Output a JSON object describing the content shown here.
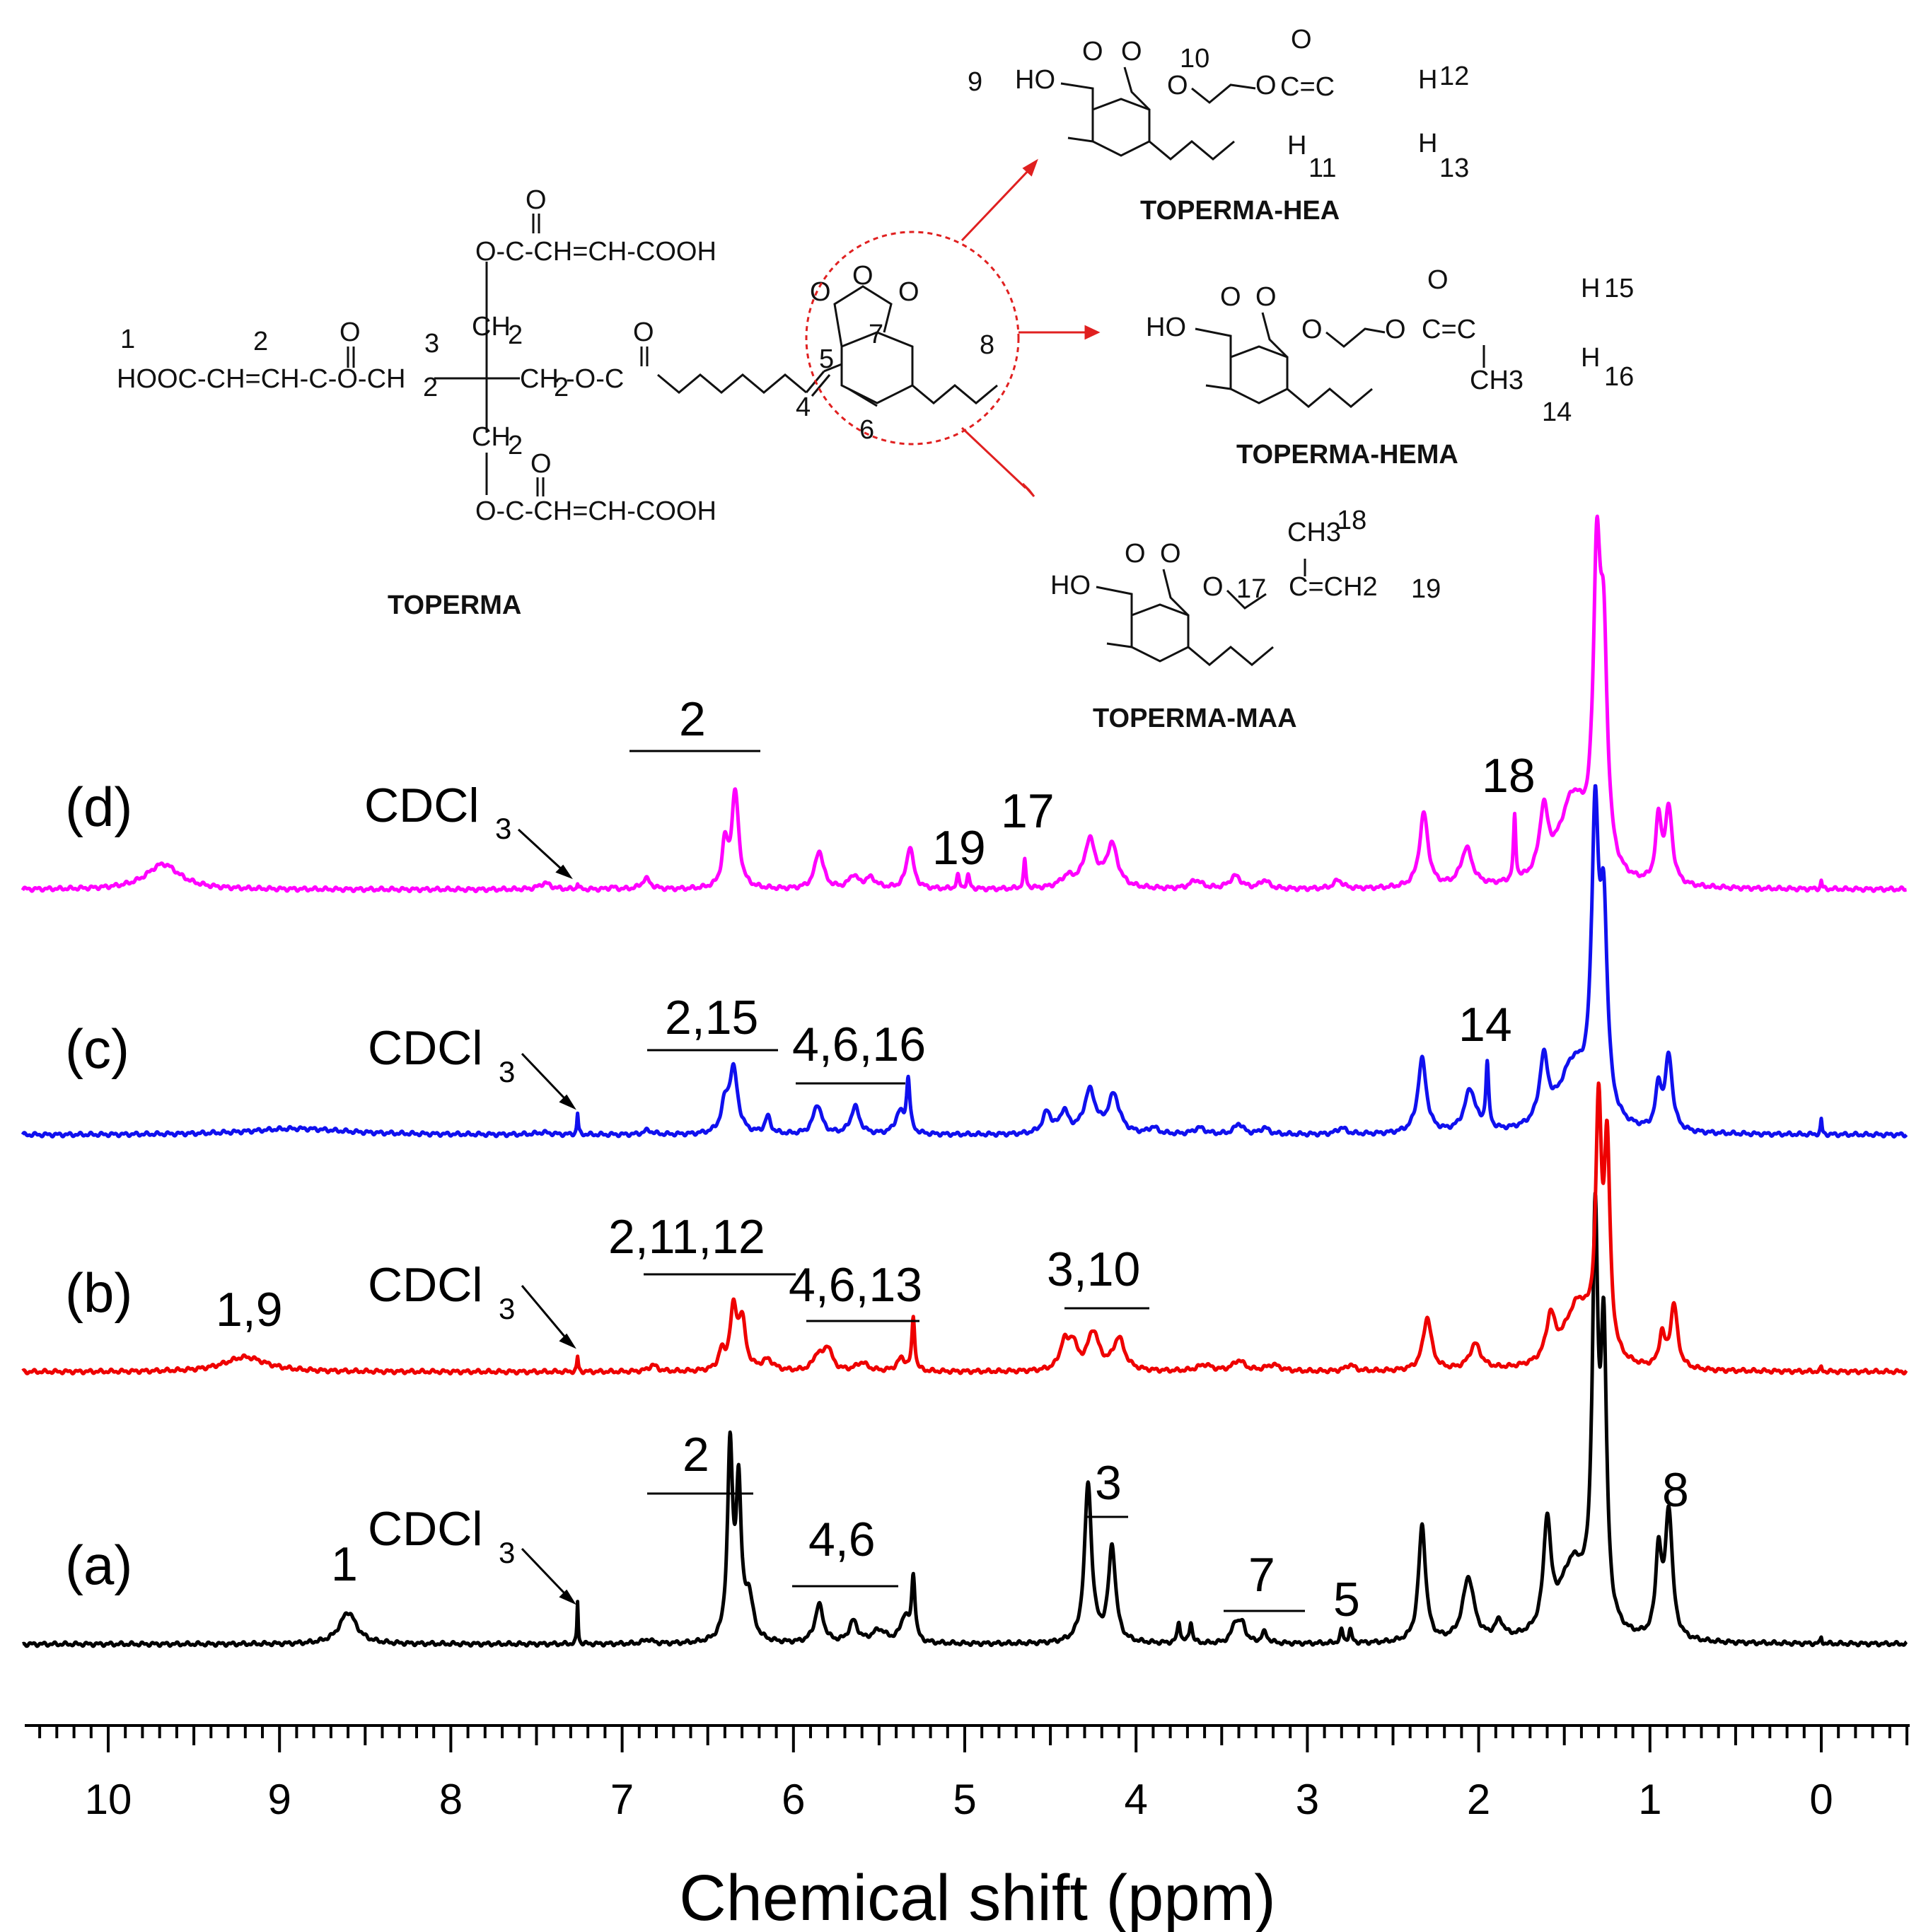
{
  "chart_data": {
    "type": "line",
    "title": "",
    "xlabel": "Chemical shift (ppm)",
    "ylabel": "",
    "xlim": [
      10.5,
      -0.5
    ],
    "xticks": [
      "10",
      "9",
      "8",
      "7",
      "6",
      "5",
      "4",
      "3",
      "2",
      "1",
      "0"
    ],
    "grid": false,
    "series": [
      {
        "name": "(a)",
        "color": "#000000",
        "peaks": [
          [
            8.6,
            0.06,
            0.15
          ],
          [
            7.26,
            0.004,
            0.2
          ],
          [
            6.85,
            0.03,
            0.02
          ],
          [
            6.37,
            0.018,
            0.9
          ],
          [
            6.32,
            0.018,
            0.7
          ],
          [
            6.26,
            0.03,
            0.2
          ],
          [
            5.85,
            0.03,
            0.18
          ],
          [
            5.65,
            0.03,
            0.1
          ],
          [
            5.5,
            0.05,
            0.06
          ],
          [
            5.35,
            0.03,
            0.12
          ],
          [
            5.3,
            0.012,
            0.3
          ],
          [
            4.28,
            0.025,
            0.75
          ],
          [
            4.14,
            0.025,
            0.45
          ],
          [
            3.75,
            0.01,
            0.1
          ],
          [
            3.68,
            0.01,
            0.1
          ],
          [
            3.42,
            0.025,
            0.09
          ],
          [
            3.38,
            0.025,
            0.08
          ],
          [
            3.25,
            0.02,
            0.05
          ],
          [
            2.8,
            0.01,
            0.06
          ],
          [
            2.75,
            0.01,
            0.06
          ],
          [
            2.33,
            0.025,
            0.55
          ],
          [
            2.06,
            0.04,
            0.3
          ],
          [
            1.88,
            0.03,
            0.08
          ],
          [
            1.6,
            0.025,
            0.5
          ],
          [
            1.45,
            0.1,
            0.35
          ],
          [
            1.32,
            0.02,
            1.8
          ],
          [
            1.27,
            0.02,
            1.3
          ],
          [
            0.95,
            0.02,
            0.4
          ],
          [
            0.89,
            0.025,
            0.6
          ],
          [
            0.0,
            0.005,
            0.03
          ]
        ]
      },
      {
        "name": "(b)",
        "color": "#ee0000",
        "peaks": [
          [
            9.2,
            0.15,
            0.07
          ],
          [
            7.26,
            0.005,
            0.07
          ],
          [
            6.82,
            0.03,
            0.03
          ],
          [
            6.42,
            0.02,
            0.08
          ],
          [
            6.35,
            0.025,
            0.28
          ],
          [
            6.3,
            0.025,
            0.22
          ],
          [
            6.15,
            0.04,
            0.05
          ],
          [
            5.86,
            0.03,
            0.07
          ],
          [
            5.8,
            0.03,
            0.11
          ],
          [
            5.6,
            0.04,
            0.04
          ],
          [
            5.37,
            0.03,
            0.06
          ],
          [
            5.3,
            0.01,
            0.25
          ],
          [
            4.42,
            0.03,
            0.12
          ],
          [
            4.37,
            0.03,
            0.12
          ],
          [
            4.25,
            0.04,
            0.18
          ],
          [
            4.1,
            0.04,
            0.15
          ],
          [
            3.6,
            0.05,
            0.03
          ],
          [
            3.4,
            0.04,
            0.05
          ],
          [
            3.2,
            0.05,
            0.03
          ],
          [
            2.75,
            0.03,
            0.03
          ],
          [
            2.3,
            0.03,
            0.25
          ],
          [
            2.02,
            0.04,
            0.12
          ],
          [
            1.58,
            0.03,
            0.2
          ],
          [
            1.42,
            0.1,
            0.3
          ],
          [
            1.3,
            0.02,
            1.1
          ],
          [
            1.25,
            0.02,
            0.95
          ],
          [
            0.93,
            0.02,
            0.15
          ],
          [
            0.86,
            0.025,
            0.3
          ],
          [
            0.0,
            0.005,
            0.02
          ]
        ]
      },
      {
        "name": "(c)",
        "color": "#1010ee",
        "peaks": [
          [
            8.9,
            0.35,
            0.03
          ],
          [
            7.46,
            0.05,
            0.01
          ],
          [
            7.26,
            0.005,
            0.1
          ],
          [
            6.85,
            0.03,
            0.02
          ],
          [
            6.4,
            0.025,
            0.12
          ],
          [
            6.35,
            0.03,
            0.3
          ],
          [
            6.15,
            0.02,
            0.08
          ],
          [
            5.86,
            0.03,
            0.14
          ],
          [
            5.64,
            0.03,
            0.13
          ],
          [
            5.38,
            0.03,
            0.1
          ],
          [
            5.33,
            0.012,
            0.25
          ],
          [
            4.52,
            0.03,
            0.1
          ],
          [
            4.42,
            0.03,
            0.1
          ],
          [
            4.27,
            0.04,
            0.2
          ],
          [
            4.13,
            0.04,
            0.18
          ],
          [
            3.9,
            0.03,
            0.03
          ],
          [
            3.63,
            0.04,
            0.03
          ],
          [
            3.4,
            0.03,
            0.05
          ],
          [
            3.25,
            0.03,
            0.03
          ],
          [
            2.8,
            0.03,
            0.03
          ],
          [
            2.33,
            0.03,
            0.35
          ],
          [
            2.05,
            0.04,
            0.2
          ],
          [
            1.95,
            0.01,
            0.3
          ],
          [
            1.62,
            0.03,
            0.3
          ],
          [
            1.45,
            0.1,
            0.3
          ],
          [
            1.32,
            0.025,
            1.35
          ],
          [
            1.27,
            0.025,
            0.9
          ],
          [
            0.95,
            0.02,
            0.2
          ],
          [
            0.89,
            0.025,
            0.35
          ],
          [
            0.0,
            0.005,
            0.07
          ]
        ]
      },
      {
        "name": "(d)",
        "color": "#ff00ff",
        "peaks": [
          [
            9.68,
            0.12,
            0.12
          ],
          [
            7.45,
            0.04,
            0.03
          ],
          [
            7.26,
            0.005,
            0.03
          ],
          [
            7.06,
            0.02,
            0.01
          ],
          [
            6.86,
            0.03,
            0.05
          ],
          [
            6.4,
            0.02,
            0.2
          ],
          [
            6.34,
            0.025,
            0.45
          ],
          [
            5.85,
            0.03,
            0.18
          ],
          [
            5.65,
            0.03,
            0.06
          ],
          [
            5.55,
            0.04,
            0.05
          ],
          [
            5.32,
            0.025,
            0.2
          ],
          [
            5.04,
            0.01,
            0.06
          ],
          [
            4.98,
            0.01,
            0.06
          ],
          [
            4.65,
            0.008,
            0.13
          ],
          [
            4.4,
            0.05,
            0.05
          ],
          [
            4.27,
            0.04,
            0.22
          ],
          [
            4.14,
            0.04,
            0.2
          ],
          [
            3.65,
            0.04,
            0.04
          ],
          [
            3.42,
            0.04,
            0.06
          ],
          [
            3.25,
            0.03,
            0.04
          ],
          [
            2.82,
            0.03,
            0.04
          ],
          [
            2.32,
            0.03,
            0.35
          ],
          [
            2.07,
            0.04,
            0.18
          ],
          [
            1.79,
            0.008,
            0.3
          ],
          [
            1.62,
            0.03,
            0.3
          ],
          [
            1.45,
            0.1,
            0.4
          ],
          [
            1.31,
            0.025,
            1.35
          ],
          [
            1.27,
            0.025,
            0.95
          ],
          [
            0.95,
            0.02,
            0.3
          ],
          [
            0.89,
            0.025,
            0.35
          ],
          [
            0.0,
            0.005,
            0.04
          ]
        ]
      }
    ],
    "annotations": {
      "a": [
        "1",
        "CDCl",
        "3",
        "2",
        "4,6",
        "3",
        "7",
        "5",
        "8"
      ],
      "b": [
        "1,9",
        "CDCl",
        "3",
        "2,11,12",
        "4,6,13",
        "3,10"
      ],
      "c": [
        "CDCl",
        "3",
        "2,15",
        "4,6,16",
        "14"
      ],
      "d": [
        "CDCl",
        "3",
        "2",
        "19",
        "17",
        "18"
      ]
    }
  },
  "scheme": {
    "toperma": {
      "name": "TOPERMA",
      "numbers": [
        "1",
        "2",
        "3",
        "4",
        "5",
        "6",
        "7",
        "8"
      ],
      "left_chain": "HOOC-CH=CH-C-O-CH",
      "sub2": "2",
      "center_chain": "CH",
      "o_text": "O",
      "top_arm": "O-C-CH=CH-COOH",
      "bottom_arm": "O-C-CH=CH-COOH",
      "ch2_label": "CH",
      "ester_text": "-O-C"
    },
    "hea": {
      "name": "TOPERMA-HEA",
      "numbers": [
        "9",
        "10",
        "11",
        "12",
        "13"
      ],
      "ho": "HO",
      "o": "O",
      "h": "H",
      "c_eq_c": "C=C"
    },
    "hema": {
      "name": "TOPERMA-HEMA",
      "numbers": [
        "15",
        "16",
        "14"
      ],
      "ho": "HO",
      "o": "O",
      "h": "H",
      "ch3": "CH3",
      "c_eq_c": "C=C"
    },
    "maa": {
      "name": "TOPERMA-MAA",
      "numbers": [
        "18",
        "17",
        "19"
      ],
      "ho": "HO",
      "o": "O",
      "ch3": "CH3",
      "ch2": "C=CH2"
    }
  }
}
